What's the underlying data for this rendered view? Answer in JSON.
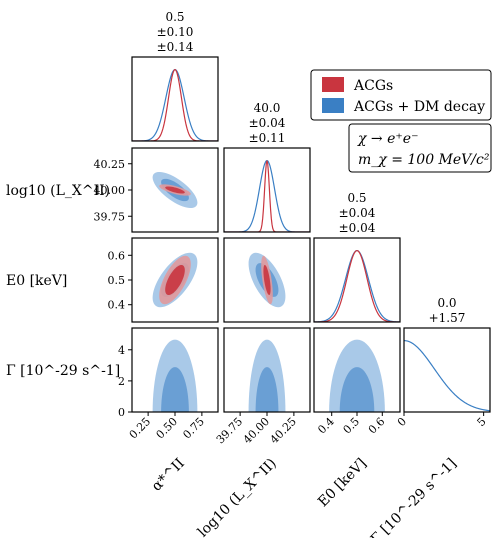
{
  "colors": {
    "acg": "#c9353f",
    "acg_light": "#e0999c",
    "dm": "#3a7fc4",
    "dm_light": "#a9c9e8",
    "dm_mid": "#6a9fd4"
  },
  "legend": {
    "entries": [
      {
        "label": "ACGs",
        "color_key": "acg"
      },
      {
        "label": "ACGs + DM decay",
        "color_key": "dm"
      }
    ]
  },
  "annotation": {
    "line1": "χ → e⁺e⁻",
    "line2": "m_χ = 100 MeV/c²"
  },
  "chart_data": {
    "type": "scatter",
    "parameters": [
      {
        "id": "alpha",
        "label": "α*^II",
        "range": [
          0.1,
          0.9
        ],
        "ticks": [
          "0.25",
          "0.50",
          "0.75"
        ],
        "tick_values": [
          0.25,
          0.5,
          0.75
        ]
      },
      {
        "id": "logLx",
        "label": "log10 (L_X^II)",
        "range": [
          39.6,
          40.4
        ],
        "ticks": [
          "39.75",
          "40.00",
          "40.25"
        ],
        "tick_values": [
          39.75,
          40.0,
          40.25
        ]
      },
      {
        "id": "E0",
        "label": "E0 [keV]",
        "range": [
          0.33,
          0.67
        ],
        "ticks": [
          "0.4",
          "0.5",
          "0.6"
        ],
        "tick_values": [
          0.4,
          0.5,
          0.6
        ]
      },
      {
        "id": "Gamma",
        "label": "Γ [10^-29 s^-1]",
        "range": [
          0,
          5.4
        ],
        "ticks": [
          "0",
          "5"
        ],
        "tick_values": [
          0,
          5
        ]
      }
    ],
    "y_ticks": {
      "logLx": [
        "39.75",
        "40.00",
        "40.25"
      ],
      "E0": [
        "0.4",
        "0.5",
        "0.6"
      ],
      "Gamma": [
        "0",
        "2",
        "4"
      ]
    },
    "y_tick_values": {
      "logLx": [
        39.75,
        40.0,
        40.25
      ],
      "E0": [
        0.4,
        0.5,
        0.6
      ],
      "Gamma": [
        0,
        2,
        4
      ]
    },
    "y_labels": {
      "logLx": "log10 (L_X^II)",
      "E0": "E0 [keV]",
      "Gamma": "Γ [10^-29 s^-1]"
    },
    "marginal_titles": [
      {
        "param": "alpha",
        "value": "0.5",
        "acg_err": "±0.10",
        "dm_err": "±0.14"
      },
      {
        "param": "logLx",
        "value": "40.0",
        "acg_err": "±0.04",
        "dm_err": "±0.11"
      },
      {
        "param": "E0",
        "value": "0.5",
        "acg_err": "±0.04",
        "dm_err": "±0.04"
      },
      {
        "param": "Gamma",
        "value": "0.0",
        "acg_err": "",
        "dm_err": "+1.57"
      }
    ],
    "series": [
      {
        "name": "ACGs",
        "means": {
          "alpha": 0.5,
          "logLx": 40.0,
          "E0": 0.5
        },
        "sigmas": {
          "alpha": 0.06,
          "logLx": 0.022,
          "E0": 0.04
        }
      },
      {
        "name": "ACGs + DM decay",
        "means": {
          "alpha": 0.5,
          "logLx": 40.0,
          "E0": 0.5,
          "Gamma": 0.0
        },
        "sigmas": {
          "alpha": 0.085,
          "logLx": 0.07,
          "E0": 0.045,
          "Gamma": 1.9
        }
      }
    ]
  }
}
